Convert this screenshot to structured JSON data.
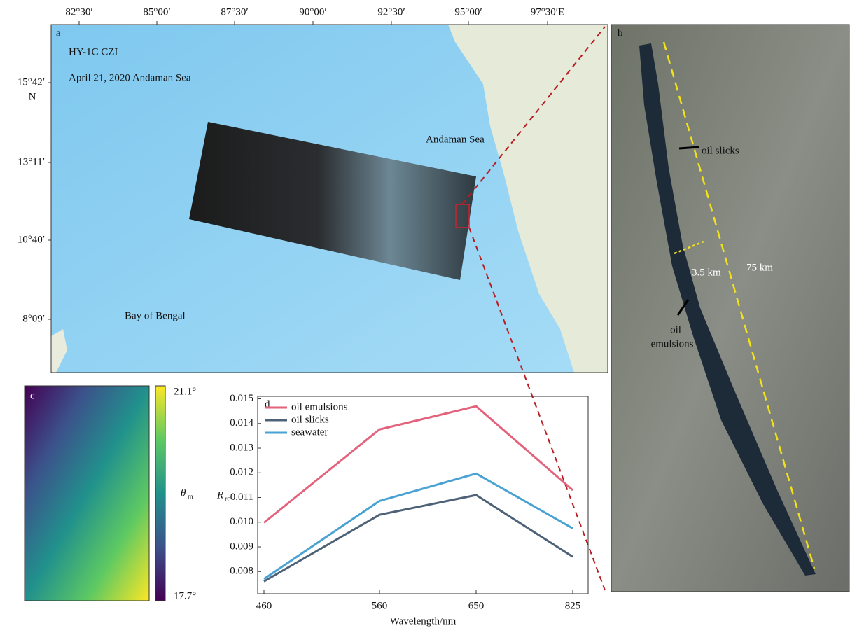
{
  "map": {
    "panel_label": "a",
    "lon_labels": [
      "82°30′",
      "85°00′",
      "87°30′",
      "90°00′",
      "92°30′",
      "95°00′",
      "97°30′E"
    ],
    "lat_labels": [
      "15°42′",
      "13°11′",
      "10°40′",
      "8°09′"
    ],
    "lat_hemisphere": "N",
    "sensor": "HY-1C CZI",
    "date_place": "April 21, 2020 Andaman Sea",
    "sea_label": "Andaman Sea",
    "bay_label": "Bay of Bengal"
  },
  "image": {
    "panel_label": "b",
    "slicks_label": "oil slicks",
    "width_label": "3.5 km",
    "length_label": "75 km",
    "emulsion_label_1": "oil",
    "emulsion_label_2": "emulsions"
  },
  "angle": {
    "panel_label": "c",
    "max_label": "21.1°",
    "min_label": "17.7°",
    "symbol": "θ",
    "subscript": "m"
  },
  "chart_data": {
    "type": "line",
    "panel_label": "d",
    "x_label": "Wavelength/nm",
    "y_label": "R",
    "y_label_subscript": "rc",
    "categories": [
      "460",
      "560",
      "650",
      "825"
    ],
    "series": [
      {
        "name": "oil emulsions",
        "color": "#e2637b",
        "values": [
          0.00998,
          0.01376,
          0.0147,
          0.0113
        ]
      },
      {
        "name": "oil slicks",
        "color": "#4d6177",
        "values": [
          0.0076,
          0.0103,
          0.0111,
          0.0086
        ]
      },
      {
        "name": "seawater",
        "color": "#4aa2d4",
        "values": [
          0.0077,
          0.01086,
          0.01197,
          0.00975
        ]
      }
    ],
    "ylim": [
      0.0071,
      0.0151
    ],
    "yticks": [
      0.008,
      0.009,
      {
        "value": 0.01,
        "label": "0.010"
      },
      0.011,
      0.012,
      0.013,
      0.014,
      0.015
    ],
    "legend": "upper left"
  }
}
